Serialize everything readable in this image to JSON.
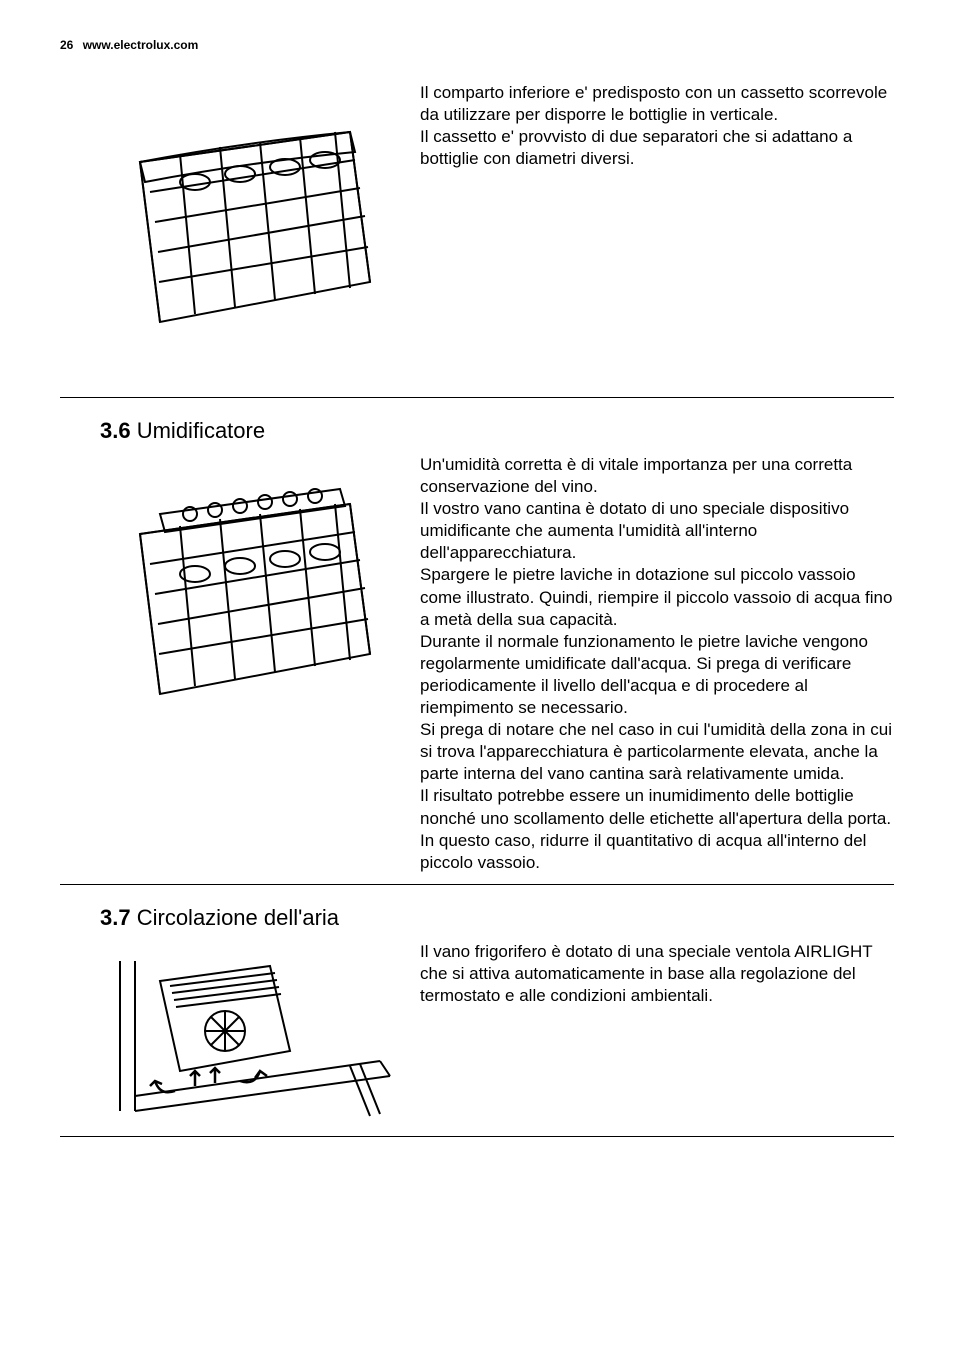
{
  "header": {
    "page_number": "26",
    "url": "www.electrolux.com"
  },
  "sections": [
    {
      "text": "Il comparto inferiore e' predisposto con un cassetto scorrevole da utilizzare per disporre le bottiglie in verticale.\nIl cassetto e' provvisto di due separatori che si adattano a bottiglie con diametri diversi."
    },
    {
      "number": "3.6",
      "title": "Umidificatore",
      "text": "Un'umidità corretta è di vitale importanza per una corretta conservazione del vino.\nIl vostro vano cantina è dotato di uno speciale dispositivo umidificante che aumenta l'umidità all'interno dell'apparecchiatura.\nSpargere le pietre laviche in dotazione sul piccolo vassoio come illustrato. Quindi, riempire il piccolo vassoio di acqua fino a metà della sua capacità.\nDurante il normale funzionamento le pietre laviche vengono regolarmente umidificate dall'acqua. Si prega di verificare periodicamente il livello dell'acqua e di procedere al riempimento se necessario.\nSi prega di notare che nel caso in cui l'umidità della zona in cui si trova l'apparecchiatura è particolarmente elevata, anche la parte interna del vano cantina sarà relativamente umida.\nIl risultato potrebbe essere un inumidimento delle bottiglie nonché uno scollamento delle etichette all'apertura della porta. In questo caso, ridurre il quantitativo di acqua all'interno del piccolo vassoio."
    },
    {
      "number": "3.7",
      "title": "Circolazione dell'aria",
      "text": "Il vano frigorifero è dotato di una speciale ventola AIRLIGHT che si attiva automaticamente in base alla regolazione del termostato e alle condizioni ambientali."
    }
  ],
  "colors": {
    "text": "#000000",
    "background": "#ffffff",
    "border": "#000000"
  }
}
